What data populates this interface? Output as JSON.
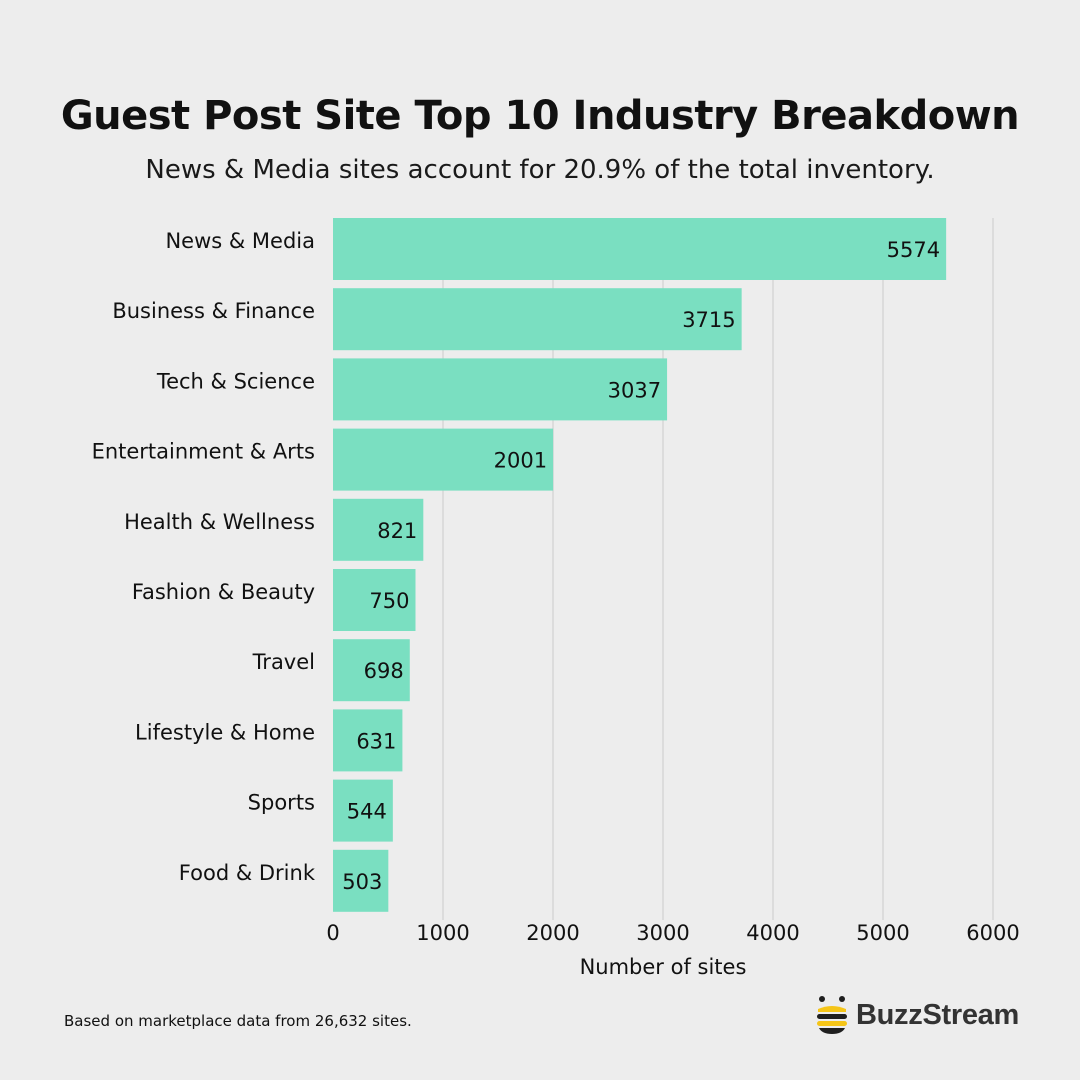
{
  "header": {
    "title": "Guest Post Site Top 10 Industry Breakdown",
    "subtitle": "News & Media sites account for 20.9% of the total inventory."
  },
  "chart_data": {
    "type": "bar",
    "orientation": "horizontal",
    "title": "Guest Post Site Top 10 Industry Breakdown",
    "xlabel": "Number of sites",
    "ylabel": "",
    "xlim": [
      0,
      6000
    ],
    "xticks": [
      0,
      1000,
      2000,
      3000,
      4000,
      5000,
      6000
    ],
    "grid": true,
    "categories": [
      "News & Media",
      "Business & Finance",
      "Tech & Science",
      "Entertainment & Arts",
      "Health & Wellness",
      "Fashion & Beauty",
      "Travel",
      "Lifestyle & Home",
      "Sports",
      "Food & Drink"
    ],
    "values": [
      5574,
      3715,
      3037,
      2001,
      821,
      750,
      698,
      631,
      544,
      503
    ],
    "bar_color": "#7adfc1"
  },
  "footer": {
    "note": "Based on marketplace data from 26,632 sites.",
    "brand": "BuzzStream",
    "brand_icon": "bee-icon"
  },
  "colors": {
    "background": "#ededed",
    "bar": "#7adfc1",
    "grid": "#d3d3d3",
    "bee_yellow": "#f5c518",
    "bee_dark": "#1f1f1f"
  }
}
